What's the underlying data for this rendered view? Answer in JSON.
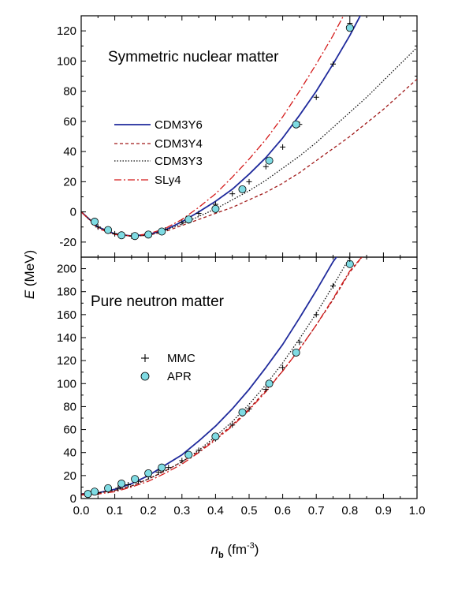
{
  "chart_data": [
    {
      "type": "line",
      "title": "Symmetric nuclear matter",
      "xlabel": "",
      "ylabel": "E (MeV)",
      "xlim": [
        0.0,
        1.0
      ],
      "ylim": [
        -30,
        130
      ],
      "grid": false,
      "legend_placement": "middle-left",
      "x_ticks": [
        "0.0",
        "0.1",
        "0.2",
        "0.3",
        "0.4",
        "0.5",
        "0.6",
        "0.7",
        "0.8",
        "0.9",
        "1.0"
      ],
      "y_ticks": [
        -20,
        0,
        20,
        40,
        60,
        80,
        100,
        120
      ],
      "series": [
        {
          "name": "CDM3Y6",
          "style": "solid",
          "color": "#1f2a9c",
          "x": [
            0.0,
            0.05,
            0.1,
            0.15,
            0.2,
            0.25,
            0.3,
            0.35,
            0.4,
            0.45,
            0.5,
            0.55,
            0.6,
            0.65,
            0.7,
            0.75,
            0.8,
            0.85
          ],
          "y": [
            0,
            -10,
            -14.5,
            -16,
            -15,
            -12,
            -6.5,
            0,
            7,
            15,
            25,
            36,
            49,
            64,
            80,
            98,
            117,
            138
          ]
        },
        {
          "name": "CDM3Y4",
          "style": "dashed",
          "color": "#a01818",
          "x": [
            0.0,
            0.05,
            0.1,
            0.15,
            0.2,
            0.25,
            0.3,
            0.35,
            0.4,
            0.45,
            0.5,
            0.55,
            0.6,
            0.65,
            0.7,
            0.75,
            0.8,
            0.85,
            0.9,
            0.95,
            1.0
          ],
          "y": [
            0,
            -10,
            -14.5,
            -16,
            -15.5,
            -13,
            -9,
            -5,
            -1,
            3,
            8,
            13,
            19,
            26,
            34,
            42,
            50,
            59,
            68,
            78,
            88
          ]
        },
        {
          "name": "CDM3Y3",
          "style": "dotted",
          "color": "#111111",
          "x": [
            0.0,
            0.05,
            0.1,
            0.15,
            0.2,
            0.25,
            0.3,
            0.35,
            0.4,
            0.45,
            0.5,
            0.55,
            0.6,
            0.65,
            0.7,
            0.75,
            0.8,
            0.85,
            0.9,
            0.95,
            1.0
          ],
          "y": [
            0,
            -10,
            -14.5,
            -16,
            -15.5,
            -12,
            -8,
            -3,
            2,
            8,
            14,
            21,
            29,
            37,
            46,
            56,
            66,
            76,
            87,
            98,
            109
          ]
        },
        {
          "name": "SLy4",
          "style": "dashdot",
          "color": "#d41a1a",
          "x": [
            0.0,
            0.05,
            0.1,
            0.15,
            0.2,
            0.25,
            0.3,
            0.35,
            0.4,
            0.45,
            0.5,
            0.55,
            0.6,
            0.65,
            0.7,
            0.75,
            0.8
          ],
          "y": [
            0,
            -11,
            -15,
            -16,
            -14.5,
            -11,
            -5,
            3,
            12,
            23,
            35,
            48,
            63,
            80,
            98,
            117,
            138
          ]
        },
        {
          "name": "MMC",
          "style": "plus",
          "color": "#000000",
          "x": [
            0.0,
            0.05,
            0.1,
            0.15,
            0.2,
            0.25,
            0.3,
            0.35,
            0.4,
            0.45,
            0.5,
            0.55,
            0.6,
            0.65,
            0.7,
            0.75,
            0.8
          ],
          "y": [
            0,
            -10,
            -14.5,
            -16,
            -15,
            -12,
            -7,
            -1,
            5,
            12,
            20,
            30,
            43,
            58,
            76,
            98,
            125
          ]
        },
        {
          "name": "APR",
          "style": "circle",
          "color": "#7fdbe3",
          "x": [
            0.04,
            0.08,
            0.12,
            0.16,
            0.2,
            0.24,
            0.32,
            0.4,
            0.48,
            0.56,
            0.64,
            0.8
          ],
          "y": [
            -6.5,
            -12,
            -15.5,
            -16,
            -15,
            -13,
            -5,
            2,
            15,
            34,
            58,
            122
          ]
        }
      ]
    },
    {
      "type": "line",
      "title": "Pure neutron matter",
      "xlabel": "nb (fm-3)",
      "ylabel": "E (MeV)",
      "xlim": [
        0.0,
        1.0
      ],
      "ylim": [
        0,
        210
      ],
      "grid": false,
      "legend_placement": "middle-left",
      "x_ticks": [
        "0.0",
        "0.1",
        "0.2",
        "0.3",
        "0.4",
        "0.5",
        "0.6",
        "0.7",
        "0.8",
        "0.9",
        "1.0"
      ],
      "y_ticks": [
        0,
        20,
        40,
        60,
        80,
        100,
        120,
        140,
        160,
        180,
        200
      ],
      "series": [
        {
          "name": "CDM3Y6",
          "style": "solid",
          "color": "#1f2a9c",
          "x": [
            0.0,
            0.05,
            0.1,
            0.15,
            0.2,
            0.25,
            0.3,
            0.35,
            0.4,
            0.45,
            0.5,
            0.55,
            0.6,
            0.65,
            0.7,
            0.75,
            0.77
          ],
          "y": [
            4,
            5,
            8,
            13,
            20,
            29,
            38,
            50,
            63,
            78,
            95,
            114,
            134,
            157,
            181,
            206,
            214
          ]
        },
        {
          "name": "CDM3Y4",
          "style": "dashed",
          "color": "#a01818",
          "x": [
            0.0,
            0.05,
            0.1,
            0.15,
            0.2,
            0.25,
            0.3,
            0.35,
            0.4,
            0.45,
            0.5,
            0.55,
            0.6,
            0.65,
            0.7,
            0.75,
            0.8,
            0.85
          ],
          "y": [
            4,
            5,
            7,
            11,
            17,
            24,
            32,
            41,
            52,
            64,
            78,
            94,
            111,
            130,
            151,
            173,
            197,
            215
          ]
        },
        {
          "name": "CDM3Y3",
          "style": "dotted",
          "color": "#111111",
          "x": [
            0.0,
            0.05,
            0.1,
            0.15,
            0.2,
            0.25,
            0.3,
            0.35,
            0.4,
            0.45,
            0.5,
            0.55,
            0.6,
            0.65,
            0.7,
            0.75,
            0.8,
            0.82
          ],
          "y": [
            4,
            5,
            7,
            11,
            17,
            24,
            32,
            42,
            54,
            67,
            82,
            99,
            118,
            139,
            161,
            185,
            210,
            216
          ]
        },
        {
          "name": "SLy4",
          "style": "dashdot",
          "color": "#d41a1a",
          "x": [
            0.0,
            0.05,
            0.1,
            0.15,
            0.2,
            0.25,
            0.3,
            0.35,
            0.4,
            0.45,
            0.5,
            0.55,
            0.6,
            0.65,
            0.7,
            0.75,
            0.8,
            0.85
          ],
          "y": [
            3,
            4,
            6,
            10,
            15,
            22,
            30,
            40,
            51,
            63,
            77,
            93,
            111,
            130,
            151,
            174,
            198,
            215
          ]
        },
        {
          "name": "MMC",
          "style": "plus",
          "color": "#000000",
          "x": [
            0.02,
            0.05,
            0.08,
            0.11,
            0.14,
            0.17,
            0.2,
            0.23,
            0.26,
            0.3,
            0.35,
            0.4,
            0.45,
            0.5,
            0.55,
            0.6,
            0.65,
            0.7,
            0.75,
            0.8
          ],
          "y": [
            4,
            5,
            7,
            9,
            12,
            15,
            19,
            23,
            27,
            33,
            42,
            52,
            64,
            78,
            95,
            114,
            136,
            160,
            185,
            205
          ]
        },
        {
          "name": "APR",
          "style": "circle",
          "color": "#7fdbe3",
          "x": [
            0.02,
            0.04,
            0.08,
            0.12,
            0.16,
            0.2,
            0.24,
            0.32,
            0.4,
            0.48,
            0.56,
            0.64,
            0.8
          ],
          "y": [
            4,
            6,
            9,
            13,
            17,
            22,
            27,
            38,
            54,
            75,
            100,
            127,
            204
          ]
        }
      ]
    }
  ],
  "labels": {
    "top_title": "Symmetric nuclear matter",
    "bottom_title": "Pure neutron matter",
    "y_axis_italic": "E",
    "y_axis_unit": " (MeV)",
    "x_axis_italic": "n",
    "x_axis_sub": "b",
    "x_axis_unit_open": " (fm",
    "x_axis_sup": "-3",
    "x_axis_unit_close": ")",
    "legend_top": [
      "CDM3Y6",
      "CDM3Y4",
      "CDM3Y3",
      "SLy4"
    ],
    "legend_bottom": [
      "MMC",
      "APR"
    ]
  }
}
